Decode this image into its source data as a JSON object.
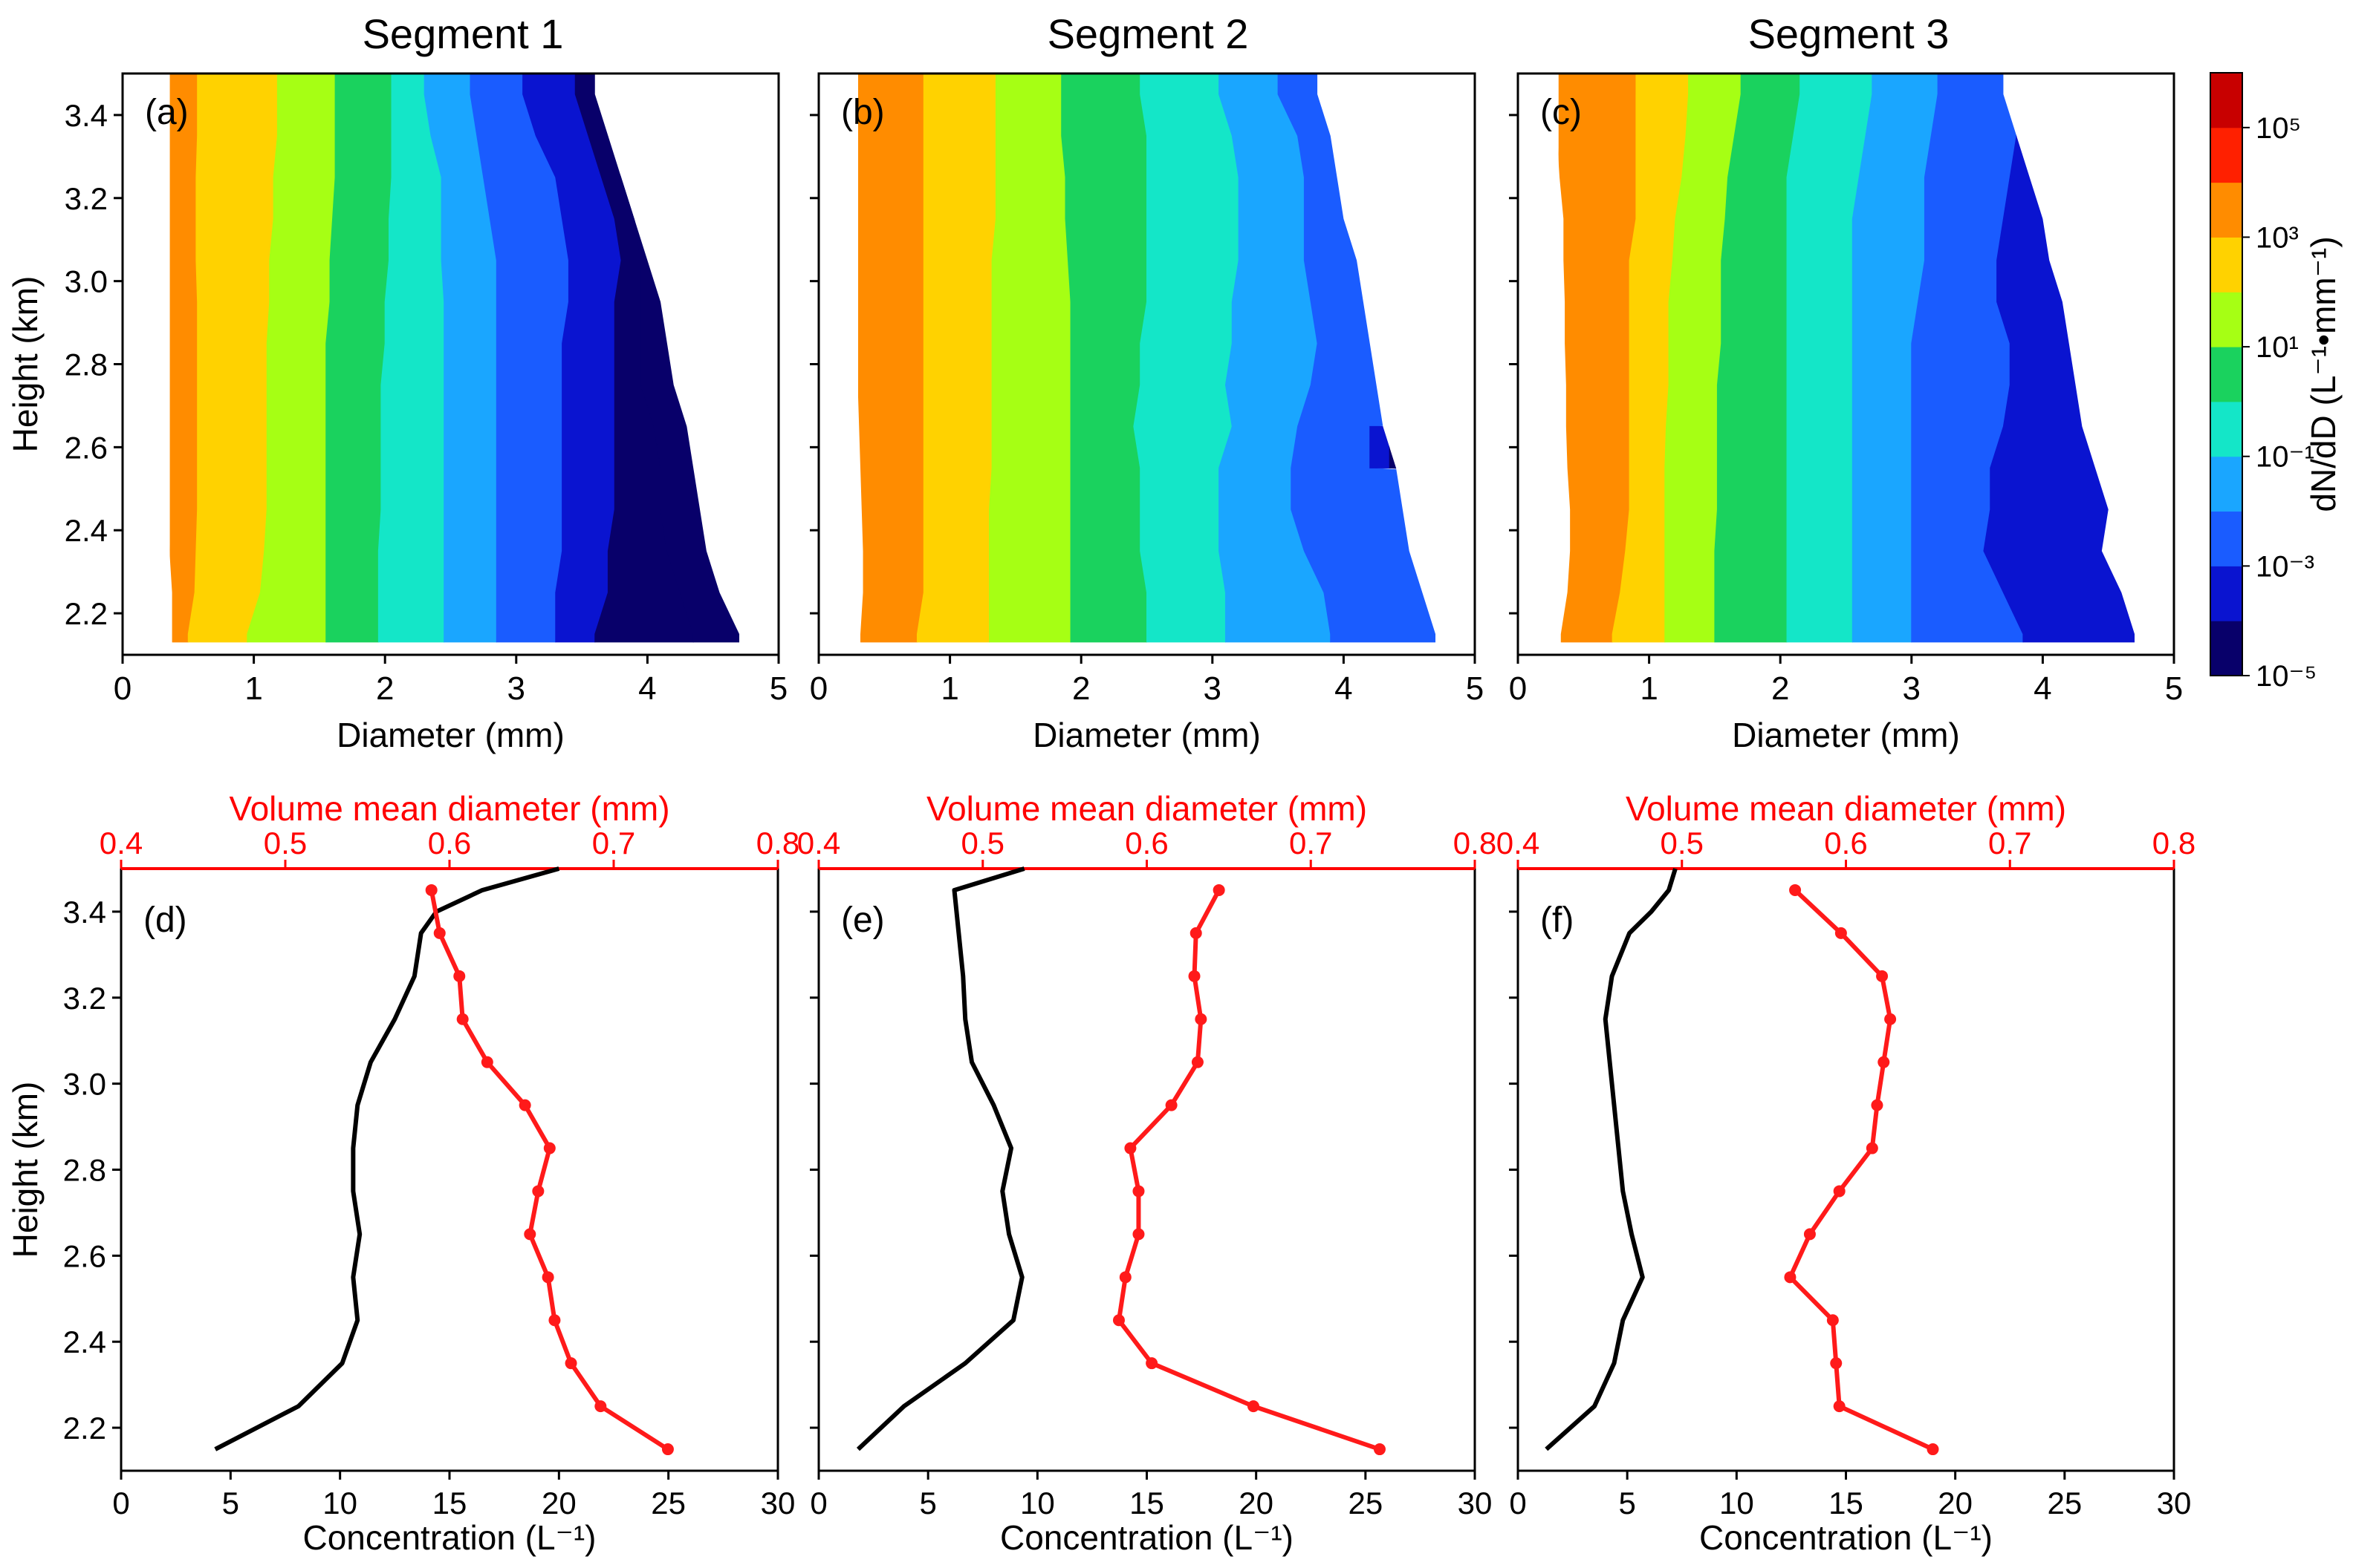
{
  "colors": {
    "red_axis": "#ff0000",
    "conc_line": "#000000",
    "vmd_line": "#ff1a1a",
    "cmap": [
      "#08006a",
      "#0a14d0",
      "#1a5cff",
      "#1aa6ff",
      "#14e6c8",
      "#1ad25e",
      "#a6ff14",
      "#ffd200",
      "#ff8c00",
      "#ff2000",
      "#c80000"
    ]
  },
  "chart_data": [
    {
      "type": "heatmap",
      "label": "(a)",
      "title": "Segment 1",
      "xlabel": "Diameter (mm)",
      "ylabel": "Height (km)",
      "xlim": [
        0,
        5
      ],
      "ylim": [
        2.1,
        3.5
      ],
      "xticks": [
        "0",
        "1",
        "2",
        "3",
        "4",
        "5"
      ],
      "yticks": [
        "2.2",
        "2.4",
        "2.6",
        "2.8",
        "3.0",
        "3.2",
        "3.4"
      ],
      "heights": [
        2.15,
        2.25,
        2.35,
        2.45,
        2.55,
        2.65,
        2.75,
        2.85,
        2.95,
        3.05,
        3.15,
        3.25,
        3.35,
        3.45
      ],
      "contour_boundaries_mm": [
        [
          0.38,
          0.38,
          0.36,
          0.34,
          0.33,
          0.31,
          0.31,
          0.3,
          0.3,
          0.3,
          0.3,
          0.3,
          0.3,
          0.3
        ],
        [
          0.5,
          0.55,
          0.56,
          0.57,
          0.57,
          0.57,
          0.57,
          0.57,
          0.57,
          0.56,
          0.56,
          0.56,
          0.57,
          0.57
        ],
        [
          0.95,
          1.05,
          1.08,
          1.1,
          1.1,
          1.1,
          1.1,
          1.1,
          1.12,
          1.12,
          1.15,
          1.15,
          1.18,
          1.18
        ],
        [
          1.55,
          1.55,
          1.55,
          1.55,
          1.55,
          1.55,
          1.55,
          1.55,
          1.58,
          1.58,
          1.6,
          1.62,
          1.62,
          1.62
        ],
        [
          1.95,
          1.95,
          1.95,
          1.97,
          1.97,
          1.97,
          1.97,
          2.0,
          2.0,
          2.03,
          2.03,
          2.05,
          2.05,
          2.05
        ],
        [
          2.45,
          2.45,
          2.45,
          2.45,
          2.45,
          2.45,
          2.45,
          2.45,
          2.45,
          2.43,
          2.43,
          2.43,
          2.35,
          2.3
        ],
        [
          2.85,
          2.85,
          2.85,
          2.85,
          2.85,
          2.85,
          2.85,
          2.85,
          2.85,
          2.85,
          2.8,
          2.75,
          2.7,
          2.65
        ],
        [
          3.3,
          3.3,
          3.35,
          3.35,
          3.35,
          3.35,
          3.35,
          3.35,
          3.4,
          3.4,
          3.35,
          3.3,
          3.15,
          3.05
        ],
        [
          3.6,
          3.7,
          3.7,
          3.75,
          3.75,
          3.75,
          3.75,
          3.75,
          3.75,
          3.8,
          3.75,
          3.65,
          3.55,
          3.45
        ],
        [
          4.35,
          4.25,
          4.15,
          4.1,
          4.1,
          4.05,
          3.95,
          3.95,
          3.95,
          3.95,
          3.9,
          3.8,
          3.75,
          3.7
        ]
      ],
      "edge_mm": [
        4.7,
        4.55,
        4.45,
        4.4,
        4.35,
        4.3,
        4.2,
        4.15,
        4.1,
        4.0,
        3.9,
        3.8,
        3.7,
        3.6
      ],
      "start_level": 8
    },
    {
      "type": "heatmap",
      "label": "(b)",
      "title": "Segment 2",
      "xlabel": "Diameter (mm)",
      "ylabel": "",
      "xlim": [
        0,
        5
      ],
      "ylim": [
        2.1,
        3.5
      ],
      "xticks": [
        "0",
        "1",
        "2",
        "3",
        "4",
        "5"
      ],
      "yticks": [
        "",
        "",
        "",
        "",
        "",
        "",
        ""
      ],
      "heights": [
        2.15,
        2.25,
        2.35,
        2.45,
        2.55,
        2.65,
        2.75,
        2.85,
        2.95,
        3.05,
        3.15,
        3.25,
        3.35,
        3.45
      ],
      "contour_boundaries_mm": [
        [
          0.32,
          0.34,
          0.34,
          0.33,
          0.32,
          0.31,
          0.3,
          0.3,
          0.3,
          0.3,
          0.3,
          0.3,
          0.3,
          0.3
        ],
        [
          0.75,
          0.8,
          0.8,
          0.8,
          0.8,
          0.8,
          0.8,
          0.8,
          0.8,
          0.8,
          0.8,
          0.8,
          0.8,
          0.8
        ],
        [
          1.3,
          1.3,
          1.3,
          1.3,
          1.32,
          1.32,
          1.32,
          1.32,
          1.32,
          1.32,
          1.35,
          1.35,
          1.35,
          1.35
        ],
        [
          1.92,
          1.92,
          1.92,
          1.92,
          1.92,
          1.92,
          1.92,
          1.92,
          1.92,
          1.9,
          1.88,
          1.88,
          1.85,
          1.85
        ],
        [
          2.5,
          2.5,
          2.45,
          2.45,
          2.45,
          2.4,
          2.45,
          2.45,
          2.5,
          2.5,
          2.5,
          2.5,
          2.5,
          2.45
        ],
        [
          3.1,
          3.1,
          3.05,
          3.05,
          3.05,
          3.15,
          3.1,
          3.15,
          3.15,
          3.2,
          3.2,
          3.2,
          3.15,
          3.05
        ],
        [
          3.9,
          3.85,
          3.7,
          3.6,
          3.6,
          3.65,
          3.75,
          3.8,
          3.75,
          3.7,
          3.7,
          3.7,
          3.65,
          3.5
        ],
        [
          99,
          99,
          99,
          99,
          4.2,
          4.2,
          99,
          99,
          99,
          99,
          99,
          99,
          99,
          99
        ],
        [
          99,
          99,
          99,
          99,
          4.35,
          4.35,
          99,
          99,
          99,
          99,
          99,
          99,
          99,
          99
        ]
      ],
      "edge_mm": [
        4.7,
        4.6,
        4.5,
        4.45,
        4.4,
        4.3,
        4.25,
        4.2,
        4.15,
        4.1,
        4.0,
        3.95,
        3.9,
        3.8
      ],
      "start_level": 8
    },
    {
      "type": "heatmap",
      "label": "(c)",
      "title": "Segment 3",
      "xlabel": "Diameter (mm)",
      "ylabel": "",
      "xlim": [
        0,
        5
      ],
      "ylim": [
        2.1,
        3.5
      ],
      "xticks": [
        "0",
        "1",
        "2",
        "3",
        "4",
        "5"
      ],
      "yticks": [
        "",
        "",
        "",
        "",
        "",
        "",
        ""
      ],
      "heights": [
        2.15,
        2.25,
        2.35,
        2.45,
        2.55,
        2.65,
        2.75,
        2.85,
        2.95,
        3.05,
        3.15,
        3.25,
        3.35,
        3.45
      ],
      "contour_boundaries_mm": [
        [
          0.33,
          0.38,
          0.4,
          0.4,
          0.38,
          0.37,
          0.37,
          0.36,
          0.36,
          0.35,
          0.35,
          0.32,
          0.3,
          0.3
        ],
        [
          0.72,
          0.78,
          0.82,
          0.85,
          0.85,
          0.85,
          0.85,
          0.85,
          0.85,
          0.85,
          0.9,
          0.9,
          0.9,
          0.9
        ],
        [
          1.12,
          1.12,
          1.12,
          1.12,
          1.12,
          1.13,
          1.15,
          1.15,
          1.15,
          1.18,
          1.2,
          1.25,
          1.28,
          1.3
        ],
        [
          1.5,
          1.5,
          1.5,
          1.52,
          1.52,
          1.52,
          1.52,
          1.55,
          1.55,
          1.55,
          1.58,
          1.6,
          1.65,
          1.7
        ],
        [
          2.05,
          2.05,
          2.05,
          2.05,
          2.05,
          2.05,
          2.05,
          2.05,
          2.05,
          2.05,
          2.05,
          2.05,
          2.1,
          2.15
        ],
        [
          2.55,
          2.55,
          2.55,
          2.55,
          2.55,
          2.55,
          2.55,
          2.55,
          2.55,
          2.55,
          2.55,
          2.6,
          2.65,
          2.7
        ],
        [
          3.0,
          3.0,
          3.0,
          3.0,
          3.0,
          3.0,
          3.0,
          3.0,
          3.05,
          3.1,
          3.1,
          3.1,
          3.15,
          3.2
        ],
        [
          3.85,
          3.7,
          3.55,
          3.6,
          3.6,
          3.7,
          3.75,
          3.75,
          3.65,
          3.65,
          3.7,
          3.75,
          3.8,
          3.85
        ]
      ],
      "edge_mm": [
        4.7,
        4.6,
        4.45,
        4.5,
        4.4,
        4.3,
        4.25,
        4.2,
        4.15,
        4.05,
        4.0,
        3.9,
        3.8,
        3.7
      ],
      "start_level": 8
    },
    {
      "type": "line",
      "label": "(d)",
      "xlabel": "Concentration (L⁻¹)",
      "ylabel": "Height (km)",
      "top_xlabel": "Volume mean diameter (mm)",
      "xlim": [
        0,
        30
      ],
      "top_xlim": [
        0.4,
        0.8
      ],
      "ylim": [
        2.1,
        3.5
      ],
      "xticks": [
        "0",
        "5",
        "10",
        "15",
        "20",
        "25",
        "30"
      ],
      "top_xticks": [
        "0.4",
        "0.5",
        "0.6",
        "0.7",
        "0.8"
      ],
      "yticks": [
        "2.2",
        "2.4",
        "2.6",
        "2.8",
        "3.0",
        "3.2",
        "3.4"
      ],
      "series": [
        {
          "name": "Concentration",
          "axis": "bottom",
          "markers": false,
          "x": [
            4.3,
            8.1,
            10.1,
            10.8,
            10.6,
            10.9,
            10.6,
            10.6,
            10.8,
            11.4,
            12.5,
            13.4,
            13.7,
            14.4,
            16.5,
            20.0
          ],
          "y": [
            2.15,
            2.25,
            2.35,
            2.45,
            2.55,
            2.65,
            2.75,
            2.85,
            2.95,
            3.05,
            3.15,
            3.25,
            3.35,
            3.4,
            3.45,
            3.5
          ]
        },
        {
          "name": "Volume mean diameter",
          "axis": "top",
          "markers": true,
          "x": [
            0.733,
            0.692,
            0.674,
            0.664,
            0.66,
            0.649,
            0.654,
            0.661,
            0.646,
            0.623,
            0.608,
            0.606,
            0.594,
            0.589
          ],
          "y": [
            2.15,
            2.25,
            2.35,
            2.45,
            2.55,
            2.65,
            2.75,
            2.85,
            2.95,
            3.05,
            3.15,
            3.25,
            3.35,
            3.45
          ]
        }
      ]
    },
    {
      "type": "line",
      "label": "(e)",
      "xlabel": "Concentration (L⁻¹)",
      "ylabel": "",
      "top_xlabel": "Volume mean diameter (mm)",
      "xlim": [
        0,
        30
      ],
      "top_xlim": [
        0.4,
        0.8
      ],
      "ylim": [
        2.1,
        3.5
      ],
      "xticks": [
        "0",
        "5",
        "10",
        "15",
        "20",
        "25",
        "30"
      ],
      "top_xticks": [
        "0.4",
        "0.5",
        "0.6",
        "0.7",
        "0.8"
      ],
      "yticks": [
        "",
        "",
        "",
        "",
        "",
        "",
        ""
      ],
      "series": [
        {
          "name": "Concentration",
          "axis": "bottom",
          "markers": false,
          "x": [
            1.8,
            3.9,
            6.7,
            8.9,
            9.3,
            8.7,
            8.4,
            8.8,
            8.0,
            7.0,
            6.7,
            6.6,
            6.4,
            6.2,
            9.4
          ],
          "y": [
            2.15,
            2.25,
            2.35,
            2.45,
            2.55,
            2.65,
            2.75,
            2.85,
            2.95,
            3.05,
            3.15,
            3.25,
            3.35,
            3.45,
            3.5
          ]
        },
        {
          "name": "Volume mean diameter",
          "axis": "top",
          "markers": true,
          "x": [
            0.742,
            0.665,
            0.603,
            0.583,
            0.587,
            0.595,
            0.595,
            0.59,
            0.615,
            0.631,
            0.633,
            0.629,
            0.63,
            0.644
          ],
          "y": [
            2.15,
            2.25,
            2.35,
            2.45,
            2.55,
            2.65,
            2.75,
            2.85,
            2.95,
            3.05,
            3.15,
            3.25,
            3.35,
            3.45
          ]
        }
      ]
    },
    {
      "type": "line",
      "label": "(f)",
      "xlabel": "Concentration (L⁻¹)",
      "ylabel": "",
      "top_xlabel": "Volume mean diameter (mm)",
      "xlim": [
        0,
        30
      ],
      "top_xlim": [
        0.4,
        0.8
      ],
      "ylim": [
        2.1,
        3.5
      ],
      "xticks": [
        "0",
        "5",
        "10",
        "15",
        "20",
        "25",
        "30"
      ],
      "top_xticks": [
        "0.4",
        "0.5",
        "0.6",
        "0.7",
        "0.8"
      ],
      "yticks": [
        "2.2",
        "2.4",
        "2.6",
        "2.8",
        "3.0",
        "3.2",
        "3.4"
      ],
      "yticks_visible": false,
      "series": [
        {
          "name": "Concentration",
          "axis": "bottom",
          "markers": false,
          "x": [
            1.3,
            3.5,
            4.4,
            4.8,
            5.7,
            5.2,
            4.8,
            4.6,
            4.4,
            4.2,
            4.0,
            4.3,
            5.1,
            6.1,
            6.9,
            7.2
          ],
          "y": [
            2.15,
            2.25,
            2.35,
            2.45,
            2.55,
            2.65,
            2.75,
            2.85,
            2.95,
            3.05,
            3.15,
            3.25,
            3.35,
            3.4,
            3.45,
            3.5
          ]
        },
        {
          "name": "Volume mean diameter",
          "axis": "top",
          "markers": true,
          "x": [
            0.653,
            0.596,
            0.594,
            0.592,
            0.566,
            0.578,
            0.596,
            0.616,
            0.619,
            0.623,
            0.627,
            0.622,
            0.597,
            0.569
          ],
          "y": [
            2.15,
            2.25,
            2.35,
            2.45,
            2.55,
            2.65,
            2.75,
            2.85,
            2.95,
            3.05,
            3.15,
            3.25,
            3.35,
            3.45
          ]
        }
      ]
    }
  ],
  "colorbar": {
    "label": "dN/dD (L⁻¹•mm⁻¹)",
    "range_exp": [
      -5,
      6
    ],
    "ticks": [
      "10⁻⁵",
      "10⁻³",
      "10⁻¹",
      "10¹",
      "10³",
      "10⁵"
    ]
  }
}
